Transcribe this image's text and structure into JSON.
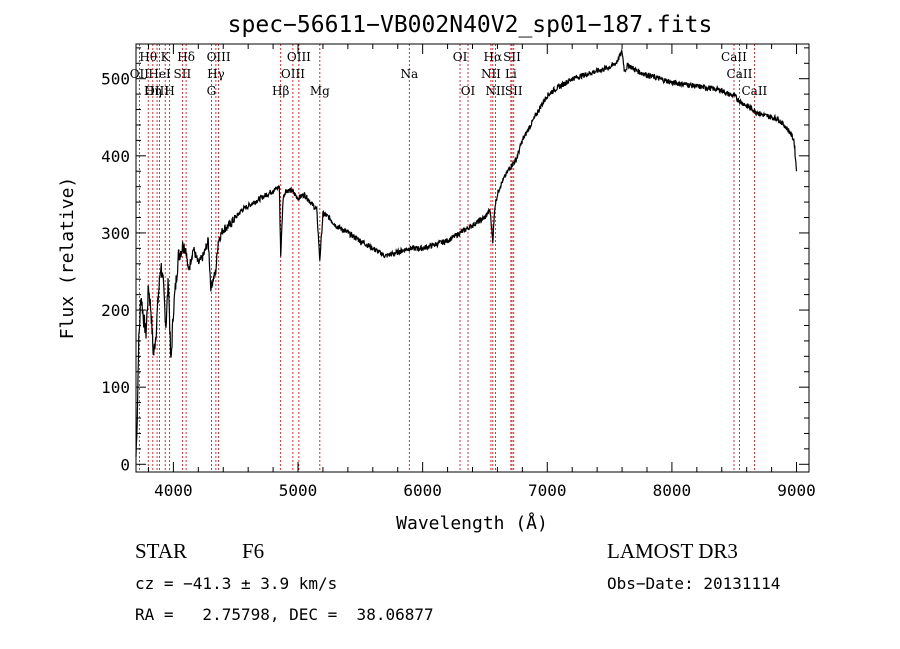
{
  "chart_data": {
    "type": "line",
    "title": "spec−56611−VB002N40V2_sp01−187.fits",
    "xlabel": "Wavelength (Å)",
    "ylabel": "Flux (relative)",
    "xlim": [
      3700,
      9100
    ],
    "ylim": [
      -10,
      545
    ],
    "x_major_ticks": [
      4000,
      5000,
      6000,
      7000,
      8000,
      9000
    ],
    "x_tick_labels": [
      "4000",
      "5000",
      "6000",
      "7000",
      "8000",
      "9000"
    ],
    "y_major_ticks": [
      0,
      100,
      200,
      300,
      400,
      500
    ],
    "y_tick_labels": [
      "0",
      "100",
      "200",
      "300",
      "400",
      "500"
    ],
    "line_color": "#000000",
    "marker_color": "#c00000",
    "series": [
      {
        "name": "spectrum",
        "x": [
          3700,
          3710,
          3720,
          3740,
          3760,
          3780,
          3800,
          3820,
          3840,
          3860,
          3880,
          3900,
          3920,
          3940,
          3960,
          3980,
          4000,
          4040,
          4080,
          4100,
          4120,
          4160,
          4200,
          4240,
          4280,
          4300,
          4320,
          4340,
          4360,
          4400,
          4450,
          4500,
          4550,
          4600,
          4650,
          4700,
          4750,
          4800,
          4850,
          4861,
          4880,
          4900,
          4950,
          5000,
          5050,
          5100,
          5150,
          5175,
          5200,
          5250,
          5300,
          5400,
          5500,
          5600,
          5700,
          5800,
          5890,
          6000,
          6100,
          6200,
          6300,
          6400,
          6450,
          6500,
          6540,
          6563,
          6580,
          6600,
          6620,
          6650,
          6700,
          6750,
          6800,
          6850,
          6900,
          6950,
          7000,
          7050,
          7100,
          7150,
          7200,
          7300,
          7400,
          7500,
          7550,
          7600,
          7620,
          7650,
          7700,
          7750,
          7800,
          7900,
          8000,
          8100,
          8200,
          8300,
          8400,
          8450,
          8500,
          8550,
          8600,
          8650,
          8700,
          8750,
          8800,
          8850,
          8900,
          8950,
          8980,
          9000
        ],
        "y": [
          10,
          60,
          150,
          220,
          190,
          170,
          230,
          200,
          140,
          170,
          220,
          260,
          230,
          180,
          240,
          130,
          200,
          270,
          285,
          280,
          250,
          280,
          260,
          270,
          290,
          230,
          240,
          250,
          290,
          305,
          310,
          320,
          330,
          335,
          340,
          345,
          350,
          355,
          360,
          270,
          345,
          355,
          355,
          345,
          350,
          340,
          330,
          265,
          325,
          320,
          310,
          300,
          290,
          280,
          270,
          275,
          280,
          280,
          285,
          290,
          300,
          310,
          315,
          320,
          330,
          290,
          335,
          350,
          360,
          370,
          385,
          395,
          420,
          435,
          450,
          465,
          478,
          485,
          490,
          495,
          500,
          505,
          510,
          515,
          520,
          535,
          510,
          518,
          512,
          508,
          505,
          500,
          495,
          493,
          490,
          488,
          485,
          480,
          478,
          470,
          465,
          460,
          455,
          452,
          450,
          448,
          440,
          430,
          420,
          380
        ]
      }
    ],
    "line_markers": [
      {
        "label": "Hθ",
        "x": 3798,
        "row": 1
      },
      {
        "label": "OII",
        "x": 3727,
        "row": 2
      },
      {
        "label": "OIII",
        "x": 3869,
        "row": 3
      },
      {
        "label": "Hη",
        "x": 3835,
        "row": 3
      },
      {
        "label": "HeI",
        "x": 3889,
        "row": 2
      },
      {
        "label": "K",
        "x": 3934,
        "row": 1
      },
      {
        "label": "H",
        "x": 3970,
        "row": 3
      },
      {
        "label": "SII",
        "x": 4072,
        "row": 2
      },
      {
        "label": "Hδ",
        "x": 4102,
        "row": 1
      },
      {
        "label": "OIII",
        "x": 4363,
        "row": 1
      },
      {
        "label": "Hγ",
        "x": 4341,
        "row": 2
      },
      {
        "label": "G",
        "x": 4305,
        "row": 3
      },
      {
        "label": "Hβ",
        "x": 4861,
        "row": 3
      },
      {
        "label": "OIII",
        "x": 4959,
        "row": 2
      },
      {
        "label": "OIII",
        "x": 5007,
        "row": 1
      },
      {
        "label": "Mg",
        "x": 5175,
        "row": 3
      },
      {
        "label": "Na",
        "x": 5893,
        "row": 2
      },
      {
        "label": "OI",
        "x": 6300,
        "row": 1
      },
      {
        "label": "OI",
        "x": 6364,
        "row": 3
      },
      {
        "label": "Hα",
        "x": 6563,
        "row": 1
      },
      {
        "label": "NII",
        "x": 6548,
        "row": 2
      },
      {
        "label": "NII",
        "x": 6584,
        "row": 3
      },
      {
        "label": "SII",
        "x": 6717,
        "row": 1
      },
      {
        "label": "Li",
        "x": 6708,
        "row": 2
      },
      {
        "label": "SII",
        "x": 6731,
        "row": 3
      },
      {
        "label": "CaII",
        "x": 8498,
        "row": 1
      },
      {
        "label": "CaII",
        "x": 8542,
        "row": 2
      },
      {
        "label": "CaII",
        "x": 8662,
        "row": 3
      }
    ]
  },
  "info": {
    "object_class": "STAR",
    "subclass": "F6",
    "survey": "LAMOST DR3",
    "redshift": "cz = −41.3 ± 3.9 km/s",
    "obs_date": "Obs−Date: 20131114",
    "coords": "RA =   2.75798, DEC =  38.06877"
  }
}
